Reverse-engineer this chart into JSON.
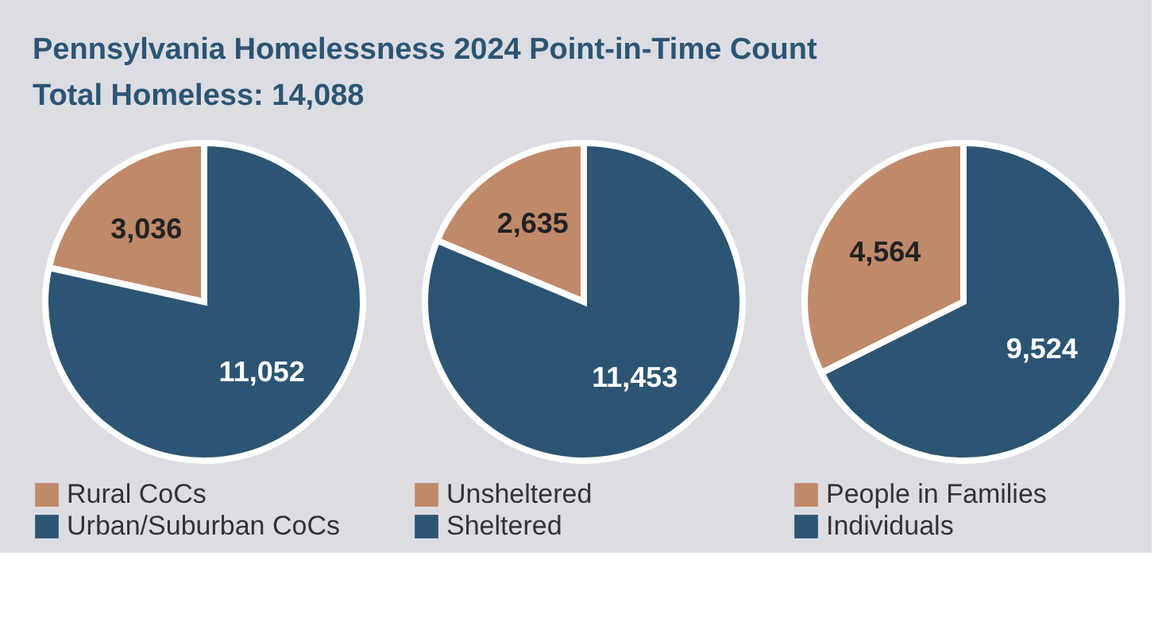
{
  "chart_data": [
    {
      "type": "pie",
      "title": "Pennsylvania Homelessness 2024 Point-in-Time Count",
      "subtitle": "Total Homeless: 14,088",
      "categories": [
        "Rural CoCs",
        "Urban/Suburban CoCs"
      ],
      "values": [
        3036,
        11052
      ],
      "value_labels": [
        "3,036",
        "11,052"
      ],
      "colors": [
        "#c0896a",
        "#2b5573"
      ],
      "legend": "bottom"
    },
    {
      "type": "pie",
      "categories": [
        "Unsheltered",
        "Sheltered"
      ],
      "values": [
        2635,
        11453
      ],
      "value_labels": [
        "2,635",
        "11,453"
      ],
      "colors": [
        "#c0896a",
        "#2b5573"
      ],
      "legend": "bottom"
    },
    {
      "type": "pie",
      "categories": [
        "People in Families",
        "Individuals"
      ],
      "values": [
        4564,
        9524
      ],
      "value_labels": [
        "4,564",
        "9,524"
      ],
      "colors": [
        "#c0896a",
        "#2b5573"
      ],
      "legend": "bottom"
    }
  ]
}
